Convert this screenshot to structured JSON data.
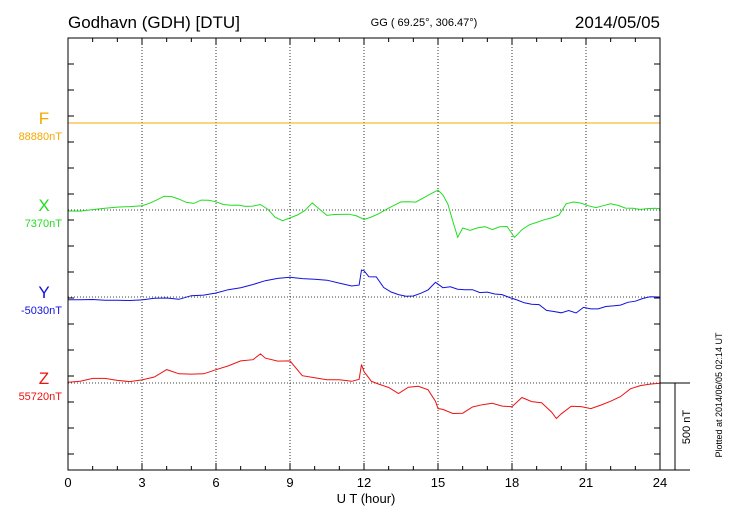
{
  "header": {
    "title": "Godhavn (GDH)  [DTU]",
    "coords": "GG ( 69.25°, 306.47°)",
    "date": "2014/05/05"
  },
  "footer_note": "Plotted at 2014/06/05 02:14 UT",
  "colors": {
    "F": "#f5a800",
    "X": "#22dd22",
    "Y": "#1111dd",
    "Z": "#ee1111",
    "axis": "#000000",
    "grid": "#000000"
  },
  "chart_data": {
    "type": "line",
    "xlabel": "U T (hour)",
    "xlim": [
      0,
      24
    ],
    "x_ticks": [
      0,
      3,
      6,
      9,
      12,
      15,
      18,
      21,
      24
    ],
    "grid": true,
    "scale_bar_label": "500 nT",
    "scale_bar_nT": 500,
    "y_unit_note": "each trace shown as deviation (nT) from its baseline",
    "series": [
      {
        "name": "F",
        "baseline_label": "88880nT",
        "hours": [
          0,
          24
        ],
        "values": [
          0,
          0
        ]
      },
      {
        "name": "X",
        "baseline_label": "7370nT",
        "hours": [
          0,
          0.5,
          1,
          1.5,
          2,
          2.5,
          3,
          3.3,
          3.6,
          3.9,
          4.2,
          4.5,
          4.8,
          5.1,
          5.4,
          5.7,
          6,
          6.3,
          6.6,
          6.9,
          7.2,
          7.5,
          7.8,
          8.1,
          8.4,
          8.7,
          9,
          9.3,
          9.6,
          9.9,
          10.2,
          10.5,
          10.8,
          11.1,
          11.4,
          11.7,
          12,
          12.3,
          12.6,
          12.9,
          13.2,
          13.5,
          13.8,
          14.1,
          14.4,
          14.7,
          15,
          15.2,
          15.4,
          15.6,
          15.8,
          16,
          16.3,
          16.6,
          16.9,
          17.2,
          17.5,
          17.8,
          18.1,
          18.4,
          18.7,
          19,
          19.3,
          19.6,
          19.9,
          20.2,
          20.5,
          20.8,
          21.1,
          21.4,
          21.7,
          22,
          22.3,
          22.6,
          22.9,
          23.2,
          23.5,
          23.8,
          24
        ],
        "values": [
          0,
          0,
          3,
          5,
          10,
          18,
          30,
          45,
          60,
          75,
          70,
          60,
          48,
          45,
          60,
          52,
          40,
          28,
          30,
          35,
          25,
          20,
          25,
          0,
          -40,
          -55,
          -40,
          -30,
          -10,
          35,
          5,
          -25,
          -20,
          -25,
          -30,
          -40,
          -55,
          -35,
          -15,
          5,
          20,
          40,
          45,
          50,
          75,
          95,
          110,
          80,
          30,
          -60,
          -150,
          -100,
          -120,
          -110,
          -100,
          -110,
          -90,
          -90,
          -160,
          -120,
          -90,
          -70,
          -50,
          -40,
          -30,
          30,
          40,
          40,
          30,
          20,
          25,
          30,
          20,
          10,
          15,
          10,
          10,
          5,
          0
        ]
      },
      {
        "name": "Y",
        "baseline_label": "-5030nT",
        "hours": [
          0,
          0.5,
          1,
          1.5,
          2,
          2.5,
          3,
          3.5,
          4,
          4.5,
          5,
          5.5,
          6,
          6.5,
          7,
          7.5,
          8,
          8.5,
          9,
          9.5,
          10,
          10.5,
          11,
          11.5,
          11.8,
          11.9,
          12,
          12.2,
          12.5,
          12.8,
          13.1,
          13.4,
          13.7,
          14,
          14.3,
          14.6,
          14.9,
          15.2,
          15.5,
          15.8,
          16.1,
          16.4,
          16.7,
          17,
          17.3,
          17.6,
          17.9,
          18.2,
          18.5,
          18.8,
          19.1,
          19.4,
          19.7,
          20,
          20.3,
          20.6,
          20.9,
          21.2,
          21.5,
          21.8,
          22.1,
          22.4,
          22.7,
          23,
          23.3,
          23.6,
          24
        ],
        "values": [
          -10,
          -15,
          -20,
          -25,
          -20,
          -15,
          -10,
          -5,
          -10,
          -20,
          5,
          15,
          30,
          45,
          50,
          65,
          90,
          110,
          120,
          110,
          100,
          90,
          75,
          65,
          75,
          160,
          150,
          110,
          110,
          55,
          35,
          20,
          5,
          0,
          15,
          40,
          90,
          60,
          60,
          40,
          35,
          40,
          30,
          35,
          20,
          10,
          -10,
          -20,
          -30,
          -35,
          -40,
          -80,
          -90,
          -95,
          -75,
          -85,
          -55,
          -70,
          -75,
          -60,
          -50,
          -40,
          -25,
          -25,
          -15,
          -5,
          0
        ]
      },
      {
        "name": "Z",
        "baseline_label": "55720nT",
        "hours": [
          0,
          0.5,
          1,
          1.5,
          2,
          2.5,
          3,
          3.5,
          4,
          4.5,
          5,
          5.5,
          6,
          6.5,
          7,
          7.5,
          7.8,
          8,
          8.5,
          9,
          9.5,
          10,
          10.5,
          11,
          11.5,
          11.8,
          11.9,
          12,
          12.3,
          12.6,
          13,
          13.4,
          13.8,
          14.2,
          14.6,
          14.9,
          15,
          15.2,
          15.6,
          16,
          16.4,
          16.8,
          17.2,
          17.6,
          18,
          18.4,
          18.8,
          19.2,
          19.6,
          19.8,
          20,
          20.4,
          20.8,
          21.2,
          21.6,
          22,
          22.4,
          22.8,
          23.2,
          23.6,
          24
        ],
        "values": [
          5,
          5,
          20,
          25,
          20,
          15,
          20,
          30,
          70,
          50,
          55,
          60,
          80,
          95,
          120,
          130,
          170,
          150,
          130,
          125,
          35,
          25,
          20,
          25,
          15,
          20,
          100,
          60,
          10,
          0,
          -20,
          -60,
          -30,
          -25,
          -40,
          -100,
          -140,
          -150,
          -180,
          -180,
          -140,
          -120,
          -110,
          -130,
          -140,
          -90,
          -110,
          -110,
          -160,
          -200,
          -180,
          -140,
          -140,
          -145,
          -120,
          -100,
          -80,
          -40,
          -20,
          -5,
          5
        ]
      }
    ]
  }
}
